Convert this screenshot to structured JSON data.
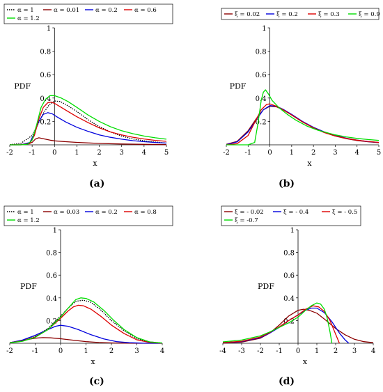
{
  "chart_data": [
    {
      "panel": "a",
      "type": "line",
      "xlim": [
        -2,
        5
      ],
      "ylim": [
        0,
        1
      ],
      "xticks": [
        -2,
        -1,
        0,
        1,
        2,
        3,
        4,
        5
      ],
      "yticks": [
        0.2,
        0.4,
        0.6,
        0.8,
        1
      ],
      "xlabel": "x",
      "ylabel": "PDF",
      "legend_rows": [
        [
          0,
          1,
          2,
          3
        ],
        [
          4
        ]
      ],
      "series": [
        {
          "name": "α = 1",
          "color": "#000000",
          "dash": "dot",
          "x": [
            -2,
            -1.5,
            -1,
            -0.75,
            -0.5,
            -0.25,
            0,
            0.25,
            0.5,
            1,
            1.5,
            2,
            2.5,
            3,
            3.5,
            4,
            4.5,
            5
          ],
          "y": [
            0.001,
            0.013,
            0.08,
            0.17,
            0.27,
            0.34,
            0.375,
            0.37,
            0.345,
            0.285,
            0.215,
            0.155,
            0.11,
            0.075,
            0.05,
            0.034,
            0.023,
            0.016
          ]
        },
        {
          "name": "α = 0.01",
          "color": "#8b0000",
          "dash": "solid",
          "x": [
            -2,
            -1.5,
            -1,
            -0.85,
            -0.7,
            -0.5,
            -0.2,
            0,
            0.5,
            1,
            1.5,
            2,
            3,
            4,
            5
          ],
          "y": [
            0,
            0.001,
            0.02,
            0.05,
            0.06,
            0.052,
            0.04,
            0.034,
            0.027,
            0.021,
            0.016,
            0.012,
            0.007,
            0.004,
            0.002
          ]
        },
        {
          "name": "α = 0.2",
          "color": "#0000dd",
          "dash": "solid",
          "x": [
            -2,
            -1.5,
            -1.1,
            -0.9,
            -0.7,
            -0.5,
            -0.3,
            -0.1,
            0.1,
            0.5,
            1,
            1.5,
            2,
            2.5,
            3,
            3.5,
            4,
            4.5,
            5
          ],
          "y": [
            0,
            0,
            0.02,
            0.1,
            0.2,
            0.26,
            0.275,
            0.265,
            0.24,
            0.195,
            0.15,
            0.115,
            0.085,
            0.064,
            0.048,
            0.036,
            0.027,
            0.02,
            0.015
          ]
        },
        {
          "name": "α = 0.6",
          "color": "#dd0000",
          "dash": "solid",
          "x": [
            -2,
            -1.5,
            -1.1,
            -0.9,
            -0.7,
            -0.5,
            -0.3,
            -0.15,
            0,
            0.3,
            0.6,
            1,
            1.5,
            2,
            2.5,
            3,
            3.5,
            4,
            4.5,
            5
          ],
          "y": [
            0,
            0,
            0.01,
            0.08,
            0.22,
            0.32,
            0.36,
            0.365,
            0.355,
            0.32,
            0.285,
            0.24,
            0.19,
            0.145,
            0.11,
            0.085,
            0.065,
            0.05,
            0.038,
            0.03
          ]
        },
        {
          "name": "α = 1.2",
          "color": "#00dd00",
          "dash": "solid",
          "x": [
            -2,
            -1.5,
            -1.2,
            -1,
            -0.8,
            -0.6,
            -0.4,
            -0.2,
            0,
            0.3,
            0.6,
            1,
            1.5,
            2,
            2.5,
            3,
            3.5,
            4,
            4.5,
            5
          ],
          "y": [
            0,
            0,
            0.005,
            0.04,
            0.17,
            0.32,
            0.39,
            0.42,
            0.42,
            0.4,
            0.37,
            0.32,
            0.255,
            0.2,
            0.155,
            0.12,
            0.095,
            0.075,
            0.06,
            0.048
          ]
        }
      ]
    },
    {
      "panel": "b",
      "type": "line",
      "xlim": [
        -2,
        5
      ],
      "ylim": [
        0,
        1
      ],
      "xticks": [
        -2,
        -1,
        0,
        1,
        2,
        3,
        4,
        5
      ],
      "yticks": [
        0.2,
        0.4,
        0.6,
        0.8,
        1
      ],
      "xlabel": "x",
      "ylabel": "PDF",
      "legend_rows": [
        [
          0,
          1,
          2,
          3
        ]
      ],
      "series": [
        {
          "name": "ξ = 0.02",
          "color": "#8b0000",
          "dash": "solid",
          "x": [
            -2,
            -1.5,
            -1,
            -0.6,
            -0.3,
            0,
            0.3,
            0.6,
            1,
            1.5,
            2,
            2.5,
            3,
            3.5,
            4,
            4.5,
            5
          ],
          "y": [
            0.005,
            0.03,
            0.12,
            0.23,
            0.3,
            0.33,
            0.325,
            0.3,
            0.255,
            0.195,
            0.145,
            0.105,
            0.075,
            0.053,
            0.037,
            0.026,
            0.018
          ]
        },
        {
          "name": "ξ = 0.2",
          "color": "#0000dd",
          "dash": "solid",
          "x": [
            -2,
            -1.5,
            -1,
            -0.6,
            -0.3,
            0,
            0.3,
            0.6,
            1,
            1.5,
            2,
            2.5,
            3,
            3.5,
            4,
            4.5,
            5
          ],
          "y": [
            0.002,
            0.025,
            0.11,
            0.22,
            0.3,
            0.335,
            0.33,
            0.305,
            0.26,
            0.2,
            0.15,
            0.11,
            0.08,
            0.057,
            0.04,
            0.028,
            0.02
          ]
        },
        {
          "name": "ξ = 0.3",
          "color": "#dd0000",
          "dash": "solid",
          "x": [
            -2,
            -1.5,
            -1,
            -0.7,
            -0.4,
            -0.15,
            0,
            0.3,
            0.6,
            1,
            1.5,
            2,
            2.5,
            3,
            3.5,
            4,
            4.5,
            5
          ],
          "y": [
            0,
            0.01,
            0.08,
            0.19,
            0.3,
            0.345,
            0.35,
            0.33,
            0.3,
            0.255,
            0.195,
            0.145,
            0.105,
            0.076,
            0.055,
            0.04,
            0.029,
            0.021
          ]
        },
        {
          "name": "ξ = 0.9",
          "color": "#00dd00",
          "dash": "solid",
          "x": [
            -2,
            -1,
            -0.7,
            -0.55,
            -0.4,
            -0.3,
            -0.2,
            -0.05,
            0.1,
            0.4,
            0.8,
            1.2,
            1.7,
            2.2,
            3,
            3.5,
            4,
            4.5,
            5
          ],
          "y": [
            0,
            0,
            0.02,
            0.18,
            0.38,
            0.45,
            0.47,
            0.43,
            0.38,
            0.32,
            0.26,
            0.21,
            0.16,
            0.125,
            0.085,
            0.068,
            0.055,
            0.045,
            0.038
          ]
        }
      ]
    },
    {
      "panel": "c",
      "type": "line",
      "xlim": [
        -2,
        4
      ],
      "ylim": [
        0,
        1
      ],
      "xticks": [
        -2,
        -1,
        0,
        1,
        2,
        3,
        4
      ],
      "yticks": [
        0.2,
        0.4,
        0.6,
        0.8,
        1
      ],
      "xlabel": "x",
      "ylabel": "PDF",
      "legend_rows": [
        [
          0,
          1,
          2,
          3
        ],
        [
          4
        ]
      ],
      "series": [
        {
          "name": "α = 1",
          "color": "#000000",
          "dash": "dot",
          "x": [
            -2,
            -1.5,
            -1,
            -0.5,
            0,
            0.3,
            0.6,
            0.9,
            1.2,
            1.6,
            2,
            2.5,
            3,
            3.5,
            4
          ],
          "y": [
            0.005,
            0.022,
            0.06,
            0.13,
            0.24,
            0.31,
            0.37,
            0.38,
            0.36,
            0.29,
            0.2,
            0.11,
            0.04,
            0.012,
            0.002
          ]
        },
        {
          "name": "α = 0.03",
          "color": "#8b0000",
          "dash": "solid",
          "x": [
            -2,
            -1.5,
            -1,
            -0.7,
            -0.4,
            0,
            0.5,
            1,
            1.5,
            2,
            2.5,
            3,
            4
          ],
          "y": [
            0.005,
            0.025,
            0.045,
            0.05,
            0.048,
            0.04,
            0.027,
            0.015,
            0.007,
            0.003,
            0.001,
            0,
            0
          ]
        },
        {
          "name": "α = 0.2",
          "color": "#0000dd",
          "dash": "solid",
          "x": [
            -2,
            -1.5,
            -1,
            -0.5,
            -0.2,
            0,
            0.3,
            0.7,
            1.2,
            1.7,
            2.2,
            2.7,
            3.2,
            4
          ],
          "y": [
            0.005,
            0.028,
            0.07,
            0.12,
            0.15,
            0.158,
            0.15,
            0.12,
            0.075,
            0.038,
            0.015,
            0.005,
            0.001,
            0
          ]
        },
        {
          "name": "α = 0.8",
          "color": "#dd0000",
          "dash": "solid",
          "x": [
            -2,
            -1.5,
            -1,
            -0.5,
            0,
            0.3,
            0.5,
            0.7,
            0.9,
            1.2,
            1.6,
            2,
            2.5,
            3,
            3.5,
            4
          ],
          "y": [
            0.004,
            0.02,
            0.055,
            0.12,
            0.22,
            0.285,
            0.32,
            0.335,
            0.33,
            0.3,
            0.235,
            0.16,
            0.085,
            0.03,
            0.008,
            0.001
          ]
        },
        {
          "name": "α = 1.2",
          "color": "#00dd00",
          "dash": "solid",
          "x": [
            -2,
            -1.5,
            -1,
            -0.5,
            0,
            0.3,
            0.6,
            0.8,
            1,
            1.3,
            1.7,
            2.1,
            2.5,
            3,
            3.5,
            4
          ],
          "y": [
            0.004,
            0.018,
            0.052,
            0.12,
            0.23,
            0.31,
            0.385,
            0.4,
            0.395,
            0.365,
            0.29,
            0.2,
            0.12,
            0.05,
            0.012,
            0.002
          ]
        }
      ]
    },
    {
      "panel": "d",
      "type": "line",
      "xlim": [
        -4,
        4
      ],
      "ylim": [
        0,
        1
      ],
      "xticks": [
        -4,
        -3,
        -2,
        -1,
        0,
        1,
        2,
        3,
        4
      ],
      "yticks": [
        0.2,
        0.4,
        0.6,
        0.8,
        1
      ],
      "xlabel": "x",
      "ylabel": "PDF",
      "legend_rows": [
        [
          0,
          1,
          2
        ],
        [
          3
        ]
      ],
      "series": [
        {
          "name": "ξ = - 0.02",
          "color": "#8b0000",
          "dash": "solid",
          "x": [
            -4,
            -3,
            -2,
            -1.5,
            -1,
            -0.5,
            0,
            0.3,
            0.6,
            1,
            1.5,
            2,
            2.5,
            3,
            3.5,
            4
          ],
          "y": [
            0.002,
            0.01,
            0.045,
            0.09,
            0.16,
            0.24,
            0.29,
            0.3,
            0.29,
            0.265,
            0.2,
            0.13,
            0.075,
            0.035,
            0.014,
            0.005
          ]
        },
        {
          "name": "ξ = - 0.4",
          "color": "#0000dd",
          "dash": "solid",
          "x": [
            -4,
            -3,
            -2,
            -1.5,
            -1,
            -0.5,
            0,
            0.4,
            0.7,
            1,
            1.4,
            1.8,
            2.2,
            2.5,
            2.7
          ],
          "y": [
            0.005,
            0.015,
            0.05,
            0.09,
            0.14,
            0.2,
            0.25,
            0.29,
            0.31,
            0.31,
            0.27,
            0.19,
            0.09,
            0.03,
            0
          ]
        },
        {
          "name": "ξ = - 0.5",
          "color": "#dd0000",
          "dash": "solid",
          "x": [
            -4,
            -3,
            -2,
            -1.5,
            -1,
            -0.5,
            0,
            0.4,
            0.8,
            1.1,
            1.4,
            1.7,
            2,
            2.2
          ],
          "y": [
            0.006,
            0.018,
            0.055,
            0.095,
            0.145,
            0.2,
            0.25,
            0.3,
            0.33,
            0.32,
            0.28,
            0.2,
            0.08,
            0
          ]
        },
        {
          "name": "ξ = -0.7",
          "color": "#00dd00",
          "dash": "solid",
          "x": [
            -4,
            -3,
            -2,
            -1.5,
            -1,
            -0.5,
            0,
            0.4,
            0.7,
            1,
            1.2,
            1.4,
            1.55,
            1.7,
            1.8
          ],
          "y": [
            0.012,
            0.028,
            0.065,
            0.1,
            0.14,
            0.18,
            0.23,
            0.29,
            0.33,
            0.355,
            0.345,
            0.3,
            0.22,
            0.1,
            0
          ]
        }
      ]
    }
  ],
  "panel_labels": {
    "a": "(a)",
    "b": "(b)",
    "c": "(c)",
    "d": "(d)"
  }
}
